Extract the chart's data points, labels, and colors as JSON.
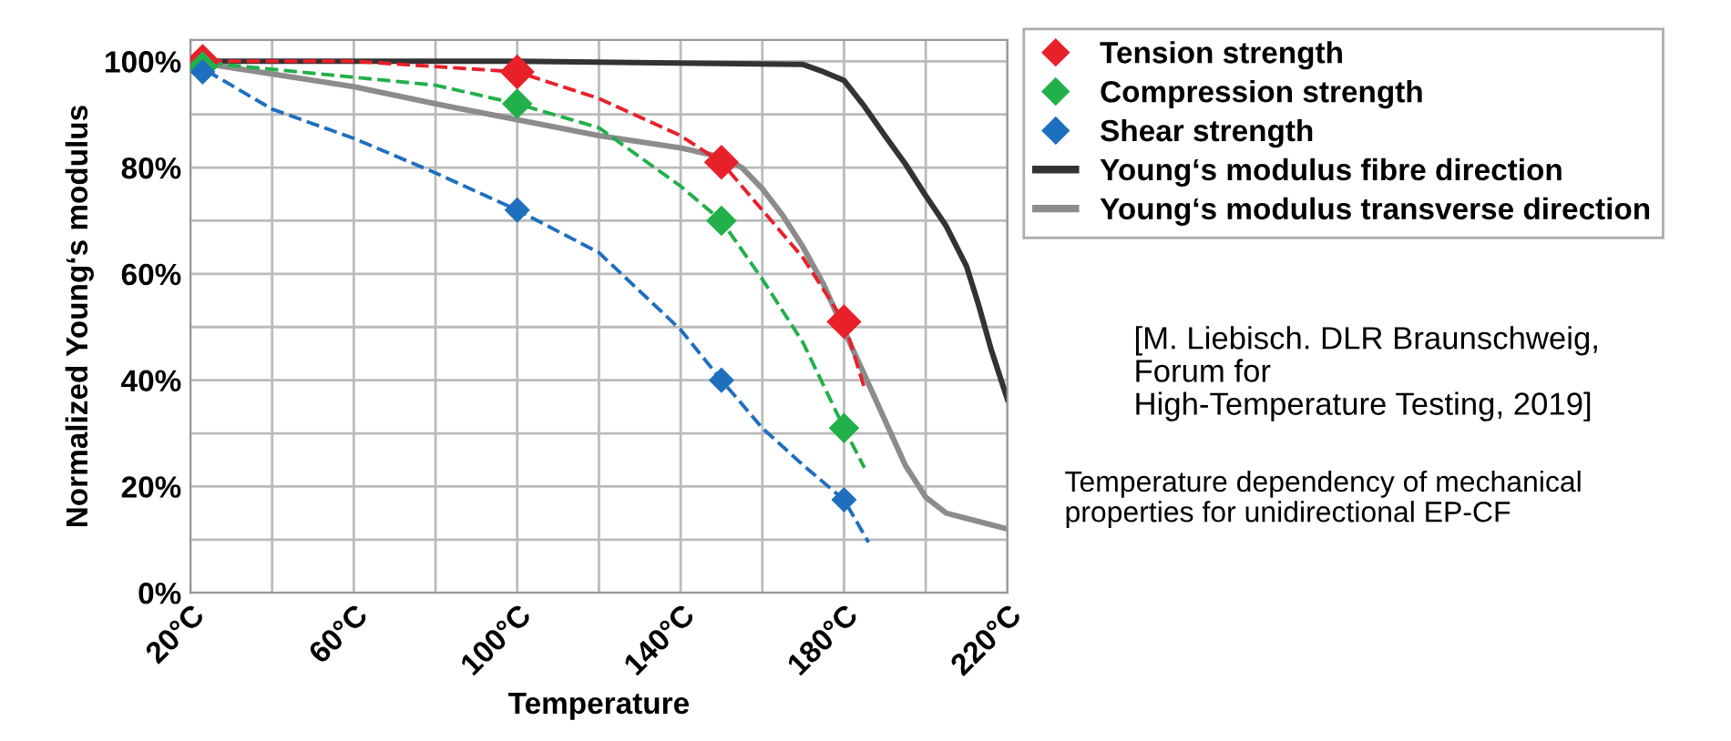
{
  "chart_data": {
    "type": "line",
    "xlabel": "Temperature",
    "ylabel": "Normalized Young‘s modulus",
    "xlim": [
      20,
      220
    ],
    "ylim": [
      0,
      104
    ],
    "xticks": [
      {
        "value": 20,
        "label": "20°C"
      },
      {
        "value": 40,
        "label": null
      },
      {
        "value": 60,
        "label": "60°C"
      },
      {
        "value": 80,
        "label": null
      },
      {
        "value": 100,
        "label": "100°C"
      },
      {
        "value": 120,
        "label": null
      },
      {
        "value": 140,
        "label": "140°C"
      },
      {
        "value": 160,
        "label": null
      },
      {
        "value": 180,
        "label": "180°C"
      },
      {
        "value": 200,
        "label": null
      },
      {
        "value": 220,
        "label": "220°C"
      }
    ],
    "yticks": [
      {
        "value": 0,
        "label": "0%"
      },
      {
        "value": 10,
        "label": null
      },
      {
        "value": 20,
        "label": "20%"
      },
      {
        "value": 30,
        "label": null
      },
      {
        "value": 40,
        "label": "40%"
      },
      {
        "value": 50,
        "label": null
      },
      {
        "value": 60,
        "label": "60%"
      },
      {
        "value": 70,
        "label": null
      },
      {
        "value": 80,
        "label": "80%"
      },
      {
        "value": 90,
        "label": null
      },
      {
        "value": 100,
        "label": "100%"
      }
    ],
    "grid": true,
    "legend": "right",
    "series": [
      {
        "name": "Tension strength",
        "type": "scatter",
        "marker": "diamond",
        "color": "#e8202a",
        "x": [
          23,
          100,
          150,
          180
        ],
        "values": [
          100,
          98,
          81,
          51
        ]
      },
      {
        "name": "Compression strength",
        "type": "scatter",
        "marker": "diamond",
        "color": "#22b04a",
        "x": [
          23,
          100,
          150,
          180
        ],
        "values": [
          99,
          92,
          70,
          31
        ]
      },
      {
        "name": "Shear strength",
        "type": "scatter",
        "marker": "diamond",
        "color": "#1f6fbf",
        "x": [
          23,
          100,
          150,
          180
        ],
        "values": [
          98,
          72,
          40,
          17.5
        ]
      },
      {
        "name": "Young‘s modulus fibre direction",
        "line_style": "solid",
        "color": "#333333",
        "x": [
          20,
          100,
          170,
          175,
          180,
          185,
          190,
          195,
          200,
          205,
          210,
          213,
          216,
          220
        ],
        "values": [
          100,
          100,
          99.4,
          98,
          96.4,
          91.5,
          86,
          80.7,
          74.7,
          69,
          61.4,
          54,
          45.8,
          36.4
        ]
      },
      {
        "name": "Young‘s modulus transverse direction",
        "line_style": "solid",
        "color": "#8c8c8c",
        "x": [
          20,
          40,
          60,
          80,
          100,
          120,
          140,
          150,
          155,
          160,
          165,
          170,
          175,
          180,
          185,
          190,
          195,
          200,
          205,
          210,
          220
        ],
        "values": [
          100,
          97.6,
          95.2,
          92,
          89,
          86,
          83.7,
          82,
          80,
          76,
          71,
          65,
          58,
          49.4,
          41,
          32.5,
          24,
          18,
          15,
          14,
          12
        ]
      },
      {
        "line_style": "dashed",
        "color": "#e8202a",
        "x": [
          20,
          60,
          80,
          100,
          120,
          140,
          150,
          160,
          170,
          180,
          185
        ],
        "values": [
          100,
          100,
          99,
          98,
          93,
          86,
          81,
          72,
          63,
          51,
          38.5
        ]
      },
      {
        "line_style": "dashed",
        "color": "#22b04a",
        "x": [
          20,
          60,
          80,
          100,
          120,
          140,
          150,
          160,
          170,
          180,
          185
        ],
        "values": [
          100,
          97,
          95.5,
          92,
          87.5,
          76.5,
          70,
          59,
          47,
          31,
          23.5
        ]
      },
      {
        "line_style": "dashed",
        "color": "#1f6fbf",
        "x": [
          20,
          40,
          60,
          80,
          100,
          120,
          140,
          150,
          160,
          170,
          180,
          186
        ],
        "values": [
          100,
          91,
          85.5,
          79,
          72,
          64,
          49.5,
          40,
          31,
          24,
          17.5,
          9.5
        ]
      }
    ],
    "annotations": [
      "[M. Liebisch. DLR Braunschweig,\nForum for\nHigh-Temperature Testing, 2019]",
      "Temperature dependency of mechanical\nproperties for unidirectional EP-CF"
    ]
  }
}
